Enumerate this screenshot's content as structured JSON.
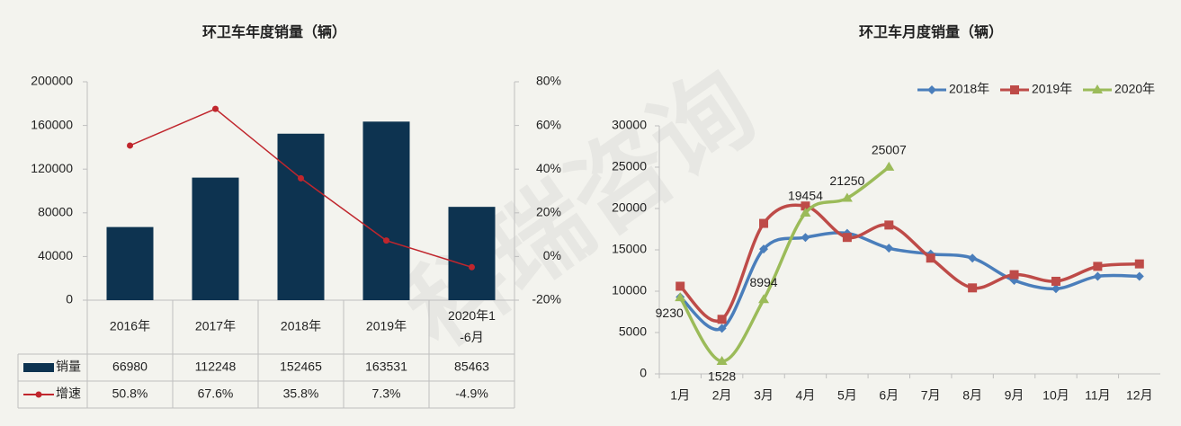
{
  "watermark": "科瑞咨询",
  "chart_data": [
    {
      "type": "bar",
      "title": "环卫车年度销量（辆）",
      "categories": [
        "2016年",
        "2017年",
        "2018年",
        "2019年",
        "2020年1-6月"
      ],
      "series": [
        {
          "name": "销量",
          "type": "bar",
          "color": "#0d3350",
          "values": [
            66980,
            112248,
            152465,
            163531,
            85463
          ]
        },
        {
          "name": "增速",
          "type": "line",
          "axis": "y2",
          "color": "#c0262d",
          "values": [
            50.8,
            67.6,
            35.8,
            7.3,
            -4.9
          ],
          "value_labels": [
            "50.8%",
            "67.6%",
            "35.8%",
            "7.3%",
            "-4.9%"
          ]
        }
      ],
      "ylim": [
        0,
        200000
      ],
      "yticks": [
        0,
        40000,
        80000,
        120000,
        160000,
        200000
      ],
      "y2lim": [
        -20,
        80
      ],
      "y2ticks": [
        {
          "value": -20,
          "label": "-20%"
        },
        {
          "value": 0,
          "label": "0%"
        },
        {
          "value": 20,
          "label": "20%"
        },
        {
          "value": 40,
          "label": "40%"
        },
        {
          "value": 60,
          "label": "60%"
        },
        {
          "value": 80,
          "label": "80%"
        }
      ],
      "grid": false,
      "legend": "table"
    },
    {
      "type": "line",
      "title": "环卫车月度销量（辆）",
      "categories": [
        "1月",
        "2月",
        "3月",
        "4月",
        "5月",
        "6月",
        "7月",
        "8月",
        "9月",
        "10月",
        "11月",
        "12月"
      ],
      "series": [
        {
          "name": "2018年",
          "color": "#4a7ebb",
          "marker": "diamond",
          "values": [
            9300,
            5500,
            15100,
            16500,
            17000,
            15200,
            14500,
            14000,
            11300,
            10300,
            11800,
            11800
          ]
        },
        {
          "name": "2019年",
          "color": "#be4b48",
          "marker": "square",
          "values": [
            10600,
            6600,
            18200,
            20300,
            16500,
            18000,
            14000,
            10400,
            12000,
            11200,
            13000,
            13300
          ]
        },
        {
          "name": "2020年",
          "color": "#9bbb59",
          "marker": "triangle",
          "values": [
            9230,
            1528,
            8994,
            19454,
            21250,
            25007,
            null,
            null,
            null,
            null,
            null,
            null
          ],
          "data_labels": true
        }
      ],
      "ylim": [
        0,
        30000
      ],
      "yticks": [
        0,
        5000,
        10000,
        15000,
        20000,
        25000,
        30000
      ],
      "grid": false,
      "legend": "top-right"
    }
  ]
}
